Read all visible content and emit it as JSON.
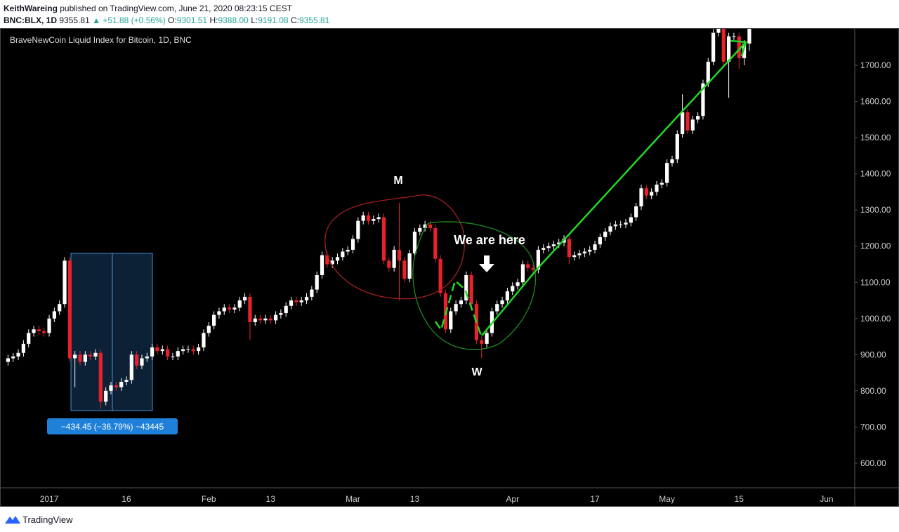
{
  "header": {
    "author": "KeithWareing",
    "published": "published on TradingView.com, June 21, 2020 08:23:15 CEST",
    "symbol": "BNC:BLX, 1D",
    "last": "9355.81",
    "change": "▲ +51.88 (+0.56%)",
    "o_label": "O:",
    "o": "9301.51",
    "h_label": "H:",
    "h": "9388.00",
    "l_label": "L:",
    "l": "9191.08",
    "c_label": "C:",
    "c": "9355.81"
  },
  "footer": {
    "brand": "TradingView"
  },
  "chart_data": {
    "type": "candlestick",
    "title": "BraveNewCoin Liquid Index for Bitcoin, 1D, BNC",
    "categories": [
      null,
      null,
      null,
      null,
      null,
      null,
      null,
      null,
      "2017",
      null,
      null,
      null,
      null,
      null,
      null,
      null,
      null,
      null,
      null,
      null,
      null,
      null,
      null,
      "16",
      null,
      null,
      null,
      null,
      null,
      null,
      null,
      null,
      null,
      null,
      null,
      null,
      null,
      null,
      null,
      "Feb",
      null,
      null,
      null,
      null,
      null,
      null,
      null,
      null,
      null,
      null,
      null,
      "13",
      null,
      null,
      null,
      null,
      null,
      null,
      null,
      null,
      null,
      null,
      null,
      null,
      null,
      null,
      null,
      "Mar",
      null,
      null,
      null,
      null,
      null,
      null,
      null,
      null,
      null,
      null,
      null,
      "13",
      null,
      null,
      null,
      null,
      null,
      null,
      null,
      null,
      null,
      null,
      null,
      null,
      null,
      null,
      null,
      null,
      null,
      null,
      "Apr",
      null,
      null,
      null,
      null,
      null,
      null,
      null,
      null,
      null,
      null,
      null,
      null,
      null,
      null,
      null,
      "17",
      null,
      null,
      null,
      null,
      null,
      null,
      null,
      null,
      null,
      null,
      null,
      null,
      null,
      "May",
      null,
      null,
      null,
      null,
      null,
      null,
      null,
      null,
      null,
      null,
      null,
      null,
      null,
      "15",
      null,
      null,
      null,
      null,
      null,
      null,
      null,
      null,
      null,
      null,
      null,
      null,
      null,
      null,
      null,
      null,
      "Jun"
    ],
    "open": [
      880,
      890,
      895,
      905,
      930,
      960,
      970,
      965,
      960,
      1000,
      1020,
      1040,
      1160,
      890,
      900,
      880,
      900,
      895,
      905,
      770,
      800,
      815,
      810,
      825,
      830,
      900,
      870,
      890,
      895,
      920,
      910,
      915,
      895,
      895,
      910,
      915,
      915,
      910,
      920,
      960,
      980,
      1010,
      1020,
      1030,
      1025,
      1030,
      1050,
      1060,
      990,
      1000,
      995,
      1000,
      995,
      1010,
      1015,
      1035,
      1050,
      1045,
      1050,
      1060,
      1080,
      1120,
      1175,
      1150,
      1160,
      1170,
      1185,
      1190,
      1220,
      1270,
      1285,
      1270,
      1275,
      1280,
      1160,
      1140,
      1190,
      1160,
      1110,
      1180,
      1240,
      1250,
      1260,
      1250,
      1165,
      1070,
      970,
      1020,
      1040,
      1050,
      1120,
      1040,
      940,
      930,
      960,
      1020,
      1040,
      1050,
      1075,
      1090,
      1100,
      1150,
      1140,
      1135,
      1190,
      1195,
      1200,
      1205,
      1210,
      1220,
      1170,
      1175,
      1180,
      1185,
      1190,
      1205,
      1225,
      1240,
      1255,
      1260,
      1260,
      1265,
      1280,
      1310,
      1360,
      1340,
      1350,
      1370,
      1375,
      1430,
      1440,
      1510,
      1570,
      1520,
      1550,
      1560,
      1650,
      1710,
      1790,
      1830,
      1710,
      1780,
      1780,
      1720,
      1760,
      null,
      null,
      null,
      null,
      null,
      null,
      null,
      null,
      null,
      null,
      null,
      null,
      null,
      null,
      null
    ],
    "high": [
      900,
      905,
      915,
      940,
      970,
      980,
      980,
      975,
      1010,
      1030,
      1050,
      1170,
      1170,
      910,
      910,
      910,
      910,
      915,
      915,
      810,
      825,
      825,
      835,
      840,
      910,
      910,
      900,
      905,
      930,
      930,
      925,
      925,
      905,
      920,
      925,
      925,
      925,
      930,
      970,
      990,
      1020,
      1030,
      1040,
      1040,
      1040,
      1060,
      1070,
      1070,
      1010,
      1010,
      1010,
      1010,
      1020,
      1025,
      1045,
      1060,
      1060,
      1060,
      1070,
      1090,
      1130,
      1185,
      1185,
      1170,
      1180,
      1195,
      1200,
      1230,
      1280,
      1295,
      1295,
      1285,
      1290,
      1290,
      1170,
      1200,
      1320,
      1170,
      1190,
      1250,
      1260,
      1270,
      1270,
      1260,
      1175,
      1080,
      1030,
      1050,
      1060,
      1130,
      1130,
      1050,
      950,
      970,
      1030,
      1050,
      1060,
      1085,
      1100,
      1110,
      1160,
      1160,
      1150,
      1200,
      1205,
      1210,
      1215,
      1220,
      1230,
      1230,
      1185,
      1190,
      1195,
      1200,
      1215,
      1235,
      1250,
      1265,
      1270,
      1270,
      1275,
      1290,
      1320,
      1370,
      1370,
      1360,
      1380,
      1385,
      1440,
      1450,
      1520,
      1620,
      1580,
      1560,
      1570,
      1660,
      1720,
      1800,
      1840,
      1840,
      1790,
      1790,
      1790,
      1770,
      1820,
      null,
      null,
      null,
      null,
      null,
      null,
      null,
      null,
      null,
      null,
      null,
      null,
      null,
      null,
      null
    ],
    "low": [
      870,
      880,
      885,
      895,
      920,
      950,
      955,
      950,
      950,
      990,
      1010,
      1030,
      880,
      810,
      870,
      870,
      885,
      885,
      750,
      760,
      790,
      800,
      800,
      815,
      820,
      860,
      860,
      880,
      885,
      900,
      900,
      885,
      885,
      885,
      900,
      905,
      900,
      900,
      910,
      950,
      970,
      1000,
      1010,
      1015,
      1015,
      1020,
      1040,
      940,
      980,
      985,
      985,
      985,
      985,
      1000,
      1005,
      1025,
      1035,
      1035,
      1040,
      1050,
      1070,
      1110,
      1140,
      1140,
      1150,
      1160,
      1175,
      1180,
      1210,
      1260,
      1260,
      1260,
      1265,
      1150,
      1130,
      1130,
      1050,
      1100,
      1100,
      1170,
      1230,
      1240,
      1240,
      1155,
      1060,
      960,
      960,
      1010,
      1030,
      1040,
      1030,
      930,
      890,
      920,
      950,
      1010,
      1030,
      1040,
      1065,
      1080,
      1090,
      1130,
      1125,
      1125,
      1180,
      1185,
      1190,
      1195,
      1200,
      1150,
      1160,
      1165,
      1170,
      1175,
      1180,
      1195,
      1215,
      1230,
      1245,
      1250,
      1250,
      1255,
      1270,
      1300,
      1330,
      1330,
      1340,
      1360,
      1365,
      1420,
      1430,
      1500,
      1510,
      1510,
      1540,
      1550,
      1640,
      1700,
      1780,
      1700,
      1610,
      1770,
      1690,
      1700,
      1740,
      null,
      null,
      null,
      null,
      null,
      null,
      null,
      null,
      null,
      null,
      null,
      null,
      null,
      null,
      null
    ],
    "close": [
      890,
      895,
      905,
      930,
      960,
      970,
      965,
      960,
      1000,
      1020,
      1040,
      1160,
      890,
      900,
      880,
      900,
      895,
      905,
      770,
      800,
      815,
      810,
      825,
      830,
      900,
      870,
      890,
      895,
      920,
      910,
      915,
      895,
      895,
      910,
      915,
      915,
      910,
      920,
      960,
      980,
      1010,
      1020,
      1030,
      1025,
      1030,
      1050,
      1060,
      990,
      1000,
      995,
      1000,
      995,
      1010,
      1015,
      1035,
      1050,
      1045,
      1050,
      1060,
      1080,
      1120,
      1175,
      1150,
      1160,
      1170,
      1185,
      1190,
      1220,
      1270,
      1285,
      1270,
      1275,
      1280,
      1160,
      1140,
      1190,
      1160,
      1110,
      1180,
      1240,
      1250,
      1260,
      1250,
      1165,
      1070,
      970,
      1020,
      1040,
      1050,
      1120,
      1040,
      940,
      930,
      960,
      1020,
      1040,
      1050,
      1075,
      1090,
      1100,
      1150,
      1140,
      1135,
      1190,
      1195,
      1200,
      1205,
      1210,
      1220,
      1170,
      1175,
      1180,
      1185,
      1190,
      1205,
      1225,
      1240,
      1255,
      1260,
      1260,
      1265,
      1280,
      1310,
      1360,
      1340,
      1350,
      1370,
      1375,
      1430,
      1440,
      1510,
      1570,
      1520,
      1550,
      1560,
      1650,
      1710,
      1790,
      1830,
      1710,
      1780,
      1780,
      1720,
      1760,
      1810,
      null,
      null,
      null,
      null,
      null,
      null,
      null,
      null,
      null,
      null,
      null,
      null,
      null,
      null,
      null
    ],
    "up_color": "#ffffff",
    "down_color": "#e8222b",
    "ylim": [
      532,
      1801
    ],
    "yticks": [
      {
        "value": 600,
        "label": "600.00"
      },
      {
        "value": 700,
        "label": "700.00"
      },
      {
        "value": 800,
        "label": "800.00"
      },
      {
        "value": 900,
        "label": "900.00"
      },
      {
        "value": 1000,
        "label": "1000.00"
      },
      {
        "value": 1100,
        "label": "1100.00"
      },
      {
        "value": 1200,
        "label": "1200.00"
      },
      {
        "value": 1300,
        "label": "1300.00"
      },
      {
        "value": 1400,
        "label": "1400.00"
      },
      {
        "value": 1500,
        "label": "1500.00"
      },
      {
        "value": 1600,
        "label": "1600.00"
      },
      {
        "value": 1700,
        "label": "1700.00"
      }
    ],
    "annotations": {
      "m": "M",
      "w": "W",
      "here": "We are here",
      "measure": "−434.45 (−36.79%) −43445"
    }
  }
}
